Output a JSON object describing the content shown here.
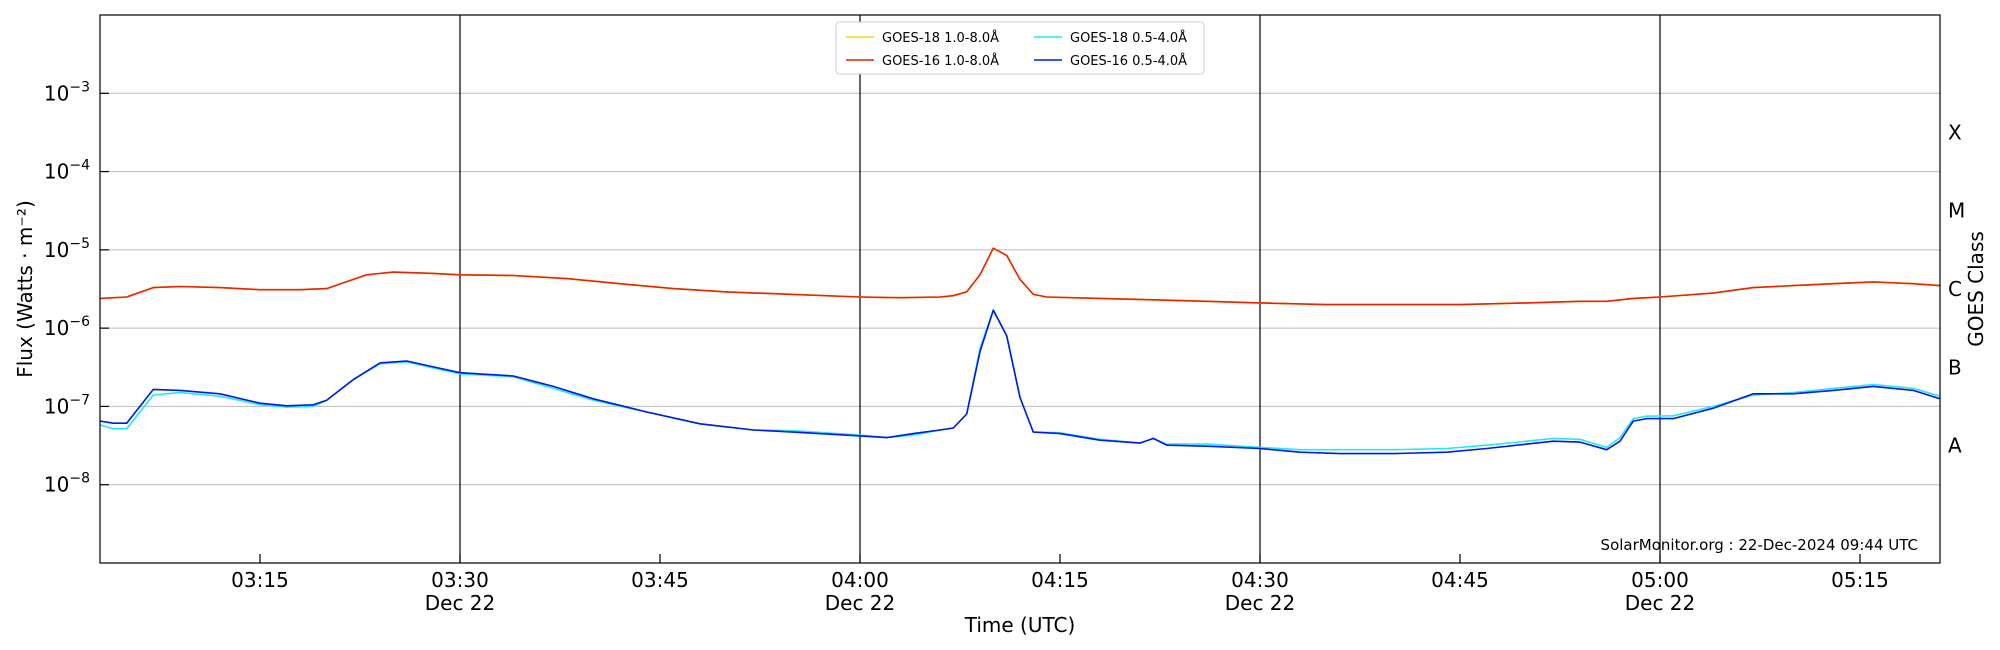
{
  "chart_data": {
    "type": "line",
    "xlabel": "Time (UTC)",
    "ylabel": "Flux (Watts · m⁻²)",
    "ylabel_right": "GOES Class",
    "y_scale": "log",
    "ylim": [
      1e-09,
      0.01
    ],
    "xlim": [
      "03:03",
      "05:21"
    ],
    "y_ticks": [
      {
        "value": 1e-08,
        "base": "10",
        "exp": "−8"
      },
      {
        "value": 1e-07,
        "base": "10",
        "exp": "−7"
      },
      {
        "value": 1e-06,
        "base": "10",
        "exp": "−6"
      },
      {
        "value": 1e-05,
        "base": "10",
        "exp": "−5"
      },
      {
        "value": 0.0001,
        "base": "10",
        "exp": "−4"
      },
      {
        "value": 0.001,
        "base": "10",
        "exp": "−3"
      }
    ],
    "x_ticks": [
      {
        "time": "03:15",
        "label": "03:15",
        "sub": ""
      },
      {
        "time": "03:30",
        "label": "03:30",
        "sub": "Dec 22"
      },
      {
        "time": "03:45",
        "label": "03:45",
        "sub": ""
      },
      {
        "time": "04:00",
        "label": "04:00",
        "sub": "Dec 22"
      },
      {
        "time": "04:15",
        "label": "04:15",
        "sub": ""
      },
      {
        "time": "04:30",
        "label": "04:30",
        "sub": "Dec 22"
      },
      {
        "time": "04:45",
        "label": "04:45",
        "sub": ""
      },
      {
        "time": "05:00",
        "label": "05:00",
        "sub": "Dec 22"
      },
      {
        "time": "05:15",
        "label": "05:15",
        "sub": ""
      }
    ],
    "vlines": [
      "03:30",
      "04:00",
      "04:30",
      "05:00"
    ],
    "class_labels": [
      {
        "label": "A",
        "value": 3.16e-08
      },
      {
        "label": "B",
        "value": 3.16e-07
      },
      {
        "label": "C",
        "value": 3.16e-06
      },
      {
        "label": "M",
        "value": 3.16e-05
      },
      {
        "label": "X",
        "value": 0.000316
      }
    ],
    "grid": true,
    "legend_position": "top-center",
    "credit": "SolarMonitor.org : 22-Dec-2024 09:44 UTC",
    "series": [
      {
        "name": "GOES-18 1.0-8.0Å",
        "color": "#ffd21f",
        "points": [
          [
            "03:03",
            2.4e-06
          ],
          [
            "03:05",
            2.5e-06
          ],
          [
            "03:07",
            3.3e-06
          ],
          [
            "03:09",
            3.4e-06
          ],
          [
            "03:12",
            3.3e-06
          ],
          [
            "03:15",
            3.1e-06
          ],
          [
            "03:18",
            3.1e-06
          ],
          [
            "03:20",
            3.2e-06
          ],
          [
            "03:23",
            4.8e-06
          ],
          [
            "03:25",
            5.2e-06
          ],
          [
            "03:28",
            5e-06
          ],
          [
            "03:30",
            4.8e-06
          ],
          [
            "03:34",
            4.7e-06
          ],
          [
            "03:38",
            4.3e-06
          ],
          [
            "03:42",
            3.7e-06
          ],
          [
            "03:46",
            3.2e-06
          ],
          [
            "03:50",
            2.9e-06
          ],
          [
            "03:55",
            2.7e-06
          ],
          [
            "04:00",
            2.5e-06
          ],
          [
            "04:03",
            2.45e-06
          ],
          [
            "04:06",
            2.5e-06
          ],
          [
            "04:07",
            2.6e-06
          ],
          [
            "04:08",
            2.9e-06
          ],
          [
            "04:09",
            4.8e-06
          ],
          [
            "04:10",
            1.05e-05
          ],
          [
            "04:11",
            8.5e-06
          ],
          [
            "04:12",
            4.2e-06
          ],
          [
            "04:13",
            2.7e-06
          ],
          [
            "04:14",
            2.5e-06
          ],
          [
            "04:18",
            2.4e-06
          ],
          [
            "04:22",
            2.3e-06
          ],
          [
            "04:26",
            2.2e-06
          ],
          [
            "04:30",
            2.1e-06
          ],
          [
            "04:35",
            2e-06
          ],
          [
            "04:40",
            2e-06
          ],
          [
            "04:45",
            2e-06
          ],
          [
            "04:50",
            2.1e-06
          ],
          [
            "04:54",
            2.2e-06
          ],
          [
            "04:56",
            2.2e-06
          ],
          [
            "04:58",
            2.4e-06
          ],
          [
            "05:00",
            2.5e-06
          ],
          [
            "05:04",
            2.8e-06
          ],
          [
            "05:07",
            3.3e-06
          ],
          [
            "05:10",
            3.5e-06
          ],
          [
            "05:13",
            3.7e-06
          ],
          [
            "05:16",
            3.9e-06
          ],
          [
            "05:19",
            3.7e-06
          ],
          [
            "05:21",
            3.5e-06
          ]
        ]
      },
      {
        "name": "GOES-16 1.0-8.0Å",
        "color": "#e82400",
        "points": [
          [
            "03:03",
            2.4e-06
          ],
          [
            "03:05",
            2.5e-06
          ],
          [
            "03:07",
            3.3e-06
          ],
          [
            "03:09",
            3.4e-06
          ],
          [
            "03:12",
            3.3e-06
          ],
          [
            "03:15",
            3.1e-06
          ],
          [
            "03:18",
            3.1e-06
          ],
          [
            "03:20",
            3.2e-06
          ],
          [
            "03:23",
            4.8e-06
          ],
          [
            "03:25",
            5.2e-06
          ],
          [
            "03:28",
            5e-06
          ],
          [
            "03:30",
            4.8e-06
          ],
          [
            "03:34",
            4.7e-06
          ],
          [
            "03:38",
            4.3e-06
          ],
          [
            "03:42",
            3.7e-06
          ],
          [
            "03:46",
            3.2e-06
          ],
          [
            "03:50",
            2.9e-06
          ],
          [
            "03:55",
            2.7e-06
          ],
          [
            "04:00",
            2.5e-06
          ],
          [
            "04:03",
            2.45e-06
          ],
          [
            "04:06",
            2.5e-06
          ],
          [
            "04:07",
            2.6e-06
          ],
          [
            "04:08",
            2.9e-06
          ],
          [
            "04:09",
            4.8e-06
          ],
          [
            "04:10",
            1.05e-05
          ],
          [
            "04:11",
            8.5e-06
          ],
          [
            "04:12",
            4.2e-06
          ],
          [
            "04:13",
            2.7e-06
          ],
          [
            "04:14",
            2.5e-06
          ],
          [
            "04:18",
            2.4e-06
          ],
          [
            "04:22",
            2.3e-06
          ],
          [
            "04:26",
            2.2e-06
          ],
          [
            "04:30",
            2.1e-06
          ],
          [
            "04:35",
            2e-06
          ],
          [
            "04:40",
            2e-06
          ],
          [
            "04:45",
            2e-06
          ],
          [
            "04:50",
            2.1e-06
          ],
          [
            "04:54",
            2.2e-06
          ],
          [
            "04:56",
            2.2e-06
          ],
          [
            "04:58",
            2.4e-06
          ],
          [
            "05:00",
            2.5e-06
          ],
          [
            "05:04",
            2.8e-06
          ],
          [
            "05:07",
            3.3e-06
          ],
          [
            "05:10",
            3.5e-06
          ],
          [
            "05:13",
            3.7e-06
          ],
          [
            "05:16",
            3.9e-06
          ],
          [
            "05:19",
            3.7e-06
          ],
          [
            "05:21",
            3.5e-06
          ]
        ]
      },
      {
        "name": "GOES-18 0.5-4.0Å",
        "color": "#22e8f2",
        "points": [
          [
            "03:03",
            5.8e-08
          ],
          [
            "03:04",
            5.2e-08
          ],
          [
            "03:05",
            5.2e-08
          ],
          [
            "03:07",
            1.4e-07
          ],
          [
            "03:09",
            1.5e-07
          ],
          [
            "03:12",
            1.35e-07
          ],
          [
            "03:15",
            1.05e-07
          ],
          [
            "03:17",
            9.8e-08
          ],
          [
            "03:19",
            1e-07
          ],
          [
            "03:20",
            1.2e-07
          ],
          [
            "03:22",
            2.2e-07
          ],
          [
            "03:24",
            3.5e-07
          ],
          [
            "03:26",
            3.7e-07
          ],
          [
            "03:28",
            3.1e-07
          ],
          [
            "03:30",
            2.6e-07
          ],
          [
            "03:34",
            2.4e-07
          ],
          [
            "03:37",
            1.7e-07
          ],
          [
            "03:40",
            1.2e-07
          ],
          [
            "03:44",
            8.5e-08
          ],
          [
            "03:48",
            6e-08
          ],
          [
            "03:52",
            5e-08
          ],
          [
            "03:55",
            4.9e-08
          ],
          [
            "04:00",
            4.3e-08
          ],
          [
            "04:02",
            4e-08
          ],
          [
            "04:04",
            4.3e-08
          ],
          [
            "04:06",
            5e-08
          ],
          [
            "04:07",
            5.3e-08
          ],
          [
            "04:08",
            8e-08
          ],
          [
            "04:09",
            5.5e-07
          ],
          [
            "04:10",
            1.7e-06
          ],
          [
            "04:11",
            8e-07
          ],
          [
            "04:12",
            1.3e-07
          ],
          [
            "04:13",
            4.7e-08
          ],
          [
            "04:15",
            4.6e-08
          ],
          [
            "04:18",
            3.8e-08
          ],
          [
            "04:21",
            3.4e-08
          ],
          [
            "04:22",
            3.9e-08
          ],
          [
            "04:23",
            3.3e-08
          ],
          [
            "04:26",
            3.3e-08
          ],
          [
            "04:30",
            3e-08
          ],
          [
            "04:33",
            2.8e-08
          ],
          [
            "04:36",
            2.8e-08
          ],
          [
            "04:40",
            2.8e-08
          ],
          [
            "04:44",
            2.9e-08
          ],
          [
            "04:47",
            3.2e-08
          ],
          [
            "04:50",
            3.6e-08
          ],
          [
            "04:52",
            3.9e-08
          ],
          [
            "04:54",
            3.8e-08
          ],
          [
            "04:56",
            3e-08
          ],
          [
            "04:57",
            4e-08
          ],
          [
            "04:58",
            7e-08
          ],
          [
            "04:59",
            7.5e-08
          ],
          [
            "05:01",
            7.6e-08
          ],
          [
            "05:04",
            1e-07
          ],
          [
            "05:07",
            1.4e-07
          ],
          [
            "05:10",
            1.5e-07
          ],
          [
            "05:13",
            1.7e-07
          ],
          [
            "05:16",
            1.9e-07
          ],
          [
            "05:19",
            1.7e-07
          ],
          [
            "05:21",
            1.35e-07
          ]
        ]
      },
      {
        "name": "GOES-16 0.5-4.0Å",
        "color": "#0019e6",
        "points": [
          [
            "03:03",
            6.5e-08
          ],
          [
            "03:04",
            6.1e-08
          ],
          [
            "03:05",
            6.1e-08
          ],
          [
            "03:07",
            1.65e-07
          ],
          [
            "03:09",
            1.6e-07
          ],
          [
            "03:12",
            1.45e-07
          ],
          [
            "03:15",
            1.1e-07
          ],
          [
            "03:17",
            1.02e-07
          ],
          [
            "03:19",
            1.05e-07
          ],
          [
            "03:20",
            1.2e-07
          ],
          [
            "03:22",
            2.2e-07
          ],
          [
            "03:24",
            3.6e-07
          ],
          [
            "03:26",
            3.8e-07
          ],
          [
            "03:28",
            3.2e-07
          ],
          [
            "03:30",
            2.7e-07
          ],
          [
            "03:34",
            2.45e-07
          ],
          [
            "03:37",
            1.8e-07
          ],
          [
            "03:40",
            1.25e-07
          ],
          [
            "03:44",
            8.5e-08
          ],
          [
            "03:48",
            6e-08
          ],
          [
            "03:52",
            5e-08
          ],
          [
            "03:55",
            4.7e-08
          ],
          [
            "04:00",
            4.2e-08
          ],
          [
            "04:02",
            4e-08
          ],
          [
            "04:04",
            4.5e-08
          ],
          [
            "04:06",
            5e-08
          ],
          [
            "04:07",
            5.3e-08
          ],
          [
            "04:08",
            8e-08
          ],
          [
            "04:09",
            5e-07
          ],
          [
            "04:10",
            1.7e-06
          ],
          [
            "04:11",
            8e-07
          ],
          [
            "04:12",
            1.3e-07
          ],
          [
            "04:13",
            4.7e-08
          ],
          [
            "04:15",
            4.5e-08
          ],
          [
            "04:18",
            3.7e-08
          ],
          [
            "04:21",
            3.4e-08
          ],
          [
            "04:22",
            3.9e-08
          ],
          [
            "04:23",
            3.2e-08
          ],
          [
            "04:26",
            3.1e-08
          ],
          [
            "04:30",
            2.9e-08
          ],
          [
            "04:33",
            2.6e-08
          ],
          [
            "04:36",
            2.5e-08
          ],
          [
            "04:40",
            2.5e-08
          ],
          [
            "04:44",
            2.6e-08
          ],
          [
            "04:47",
            2.9e-08
          ],
          [
            "04:50",
            3.3e-08
          ],
          [
            "04:52",
            3.6e-08
          ],
          [
            "04:54",
            3.5e-08
          ],
          [
            "04:56",
            2.8e-08
          ],
          [
            "04:57",
            3.6e-08
          ],
          [
            "04:58",
            6.5e-08
          ],
          [
            "04:59",
            7e-08
          ],
          [
            "05:01",
            7e-08
          ],
          [
            "05:04",
            9.5e-08
          ],
          [
            "05:07",
            1.45e-07
          ],
          [
            "05:10",
            1.45e-07
          ],
          [
            "05:13",
            1.6e-07
          ],
          [
            "05:16",
            1.8e-07
          ],
          [
            "05:19",
            1.6e-07
          ],
          [
            "05:21",
            1.25e-07
          ]
        ]
      }
    ]
  }
}
